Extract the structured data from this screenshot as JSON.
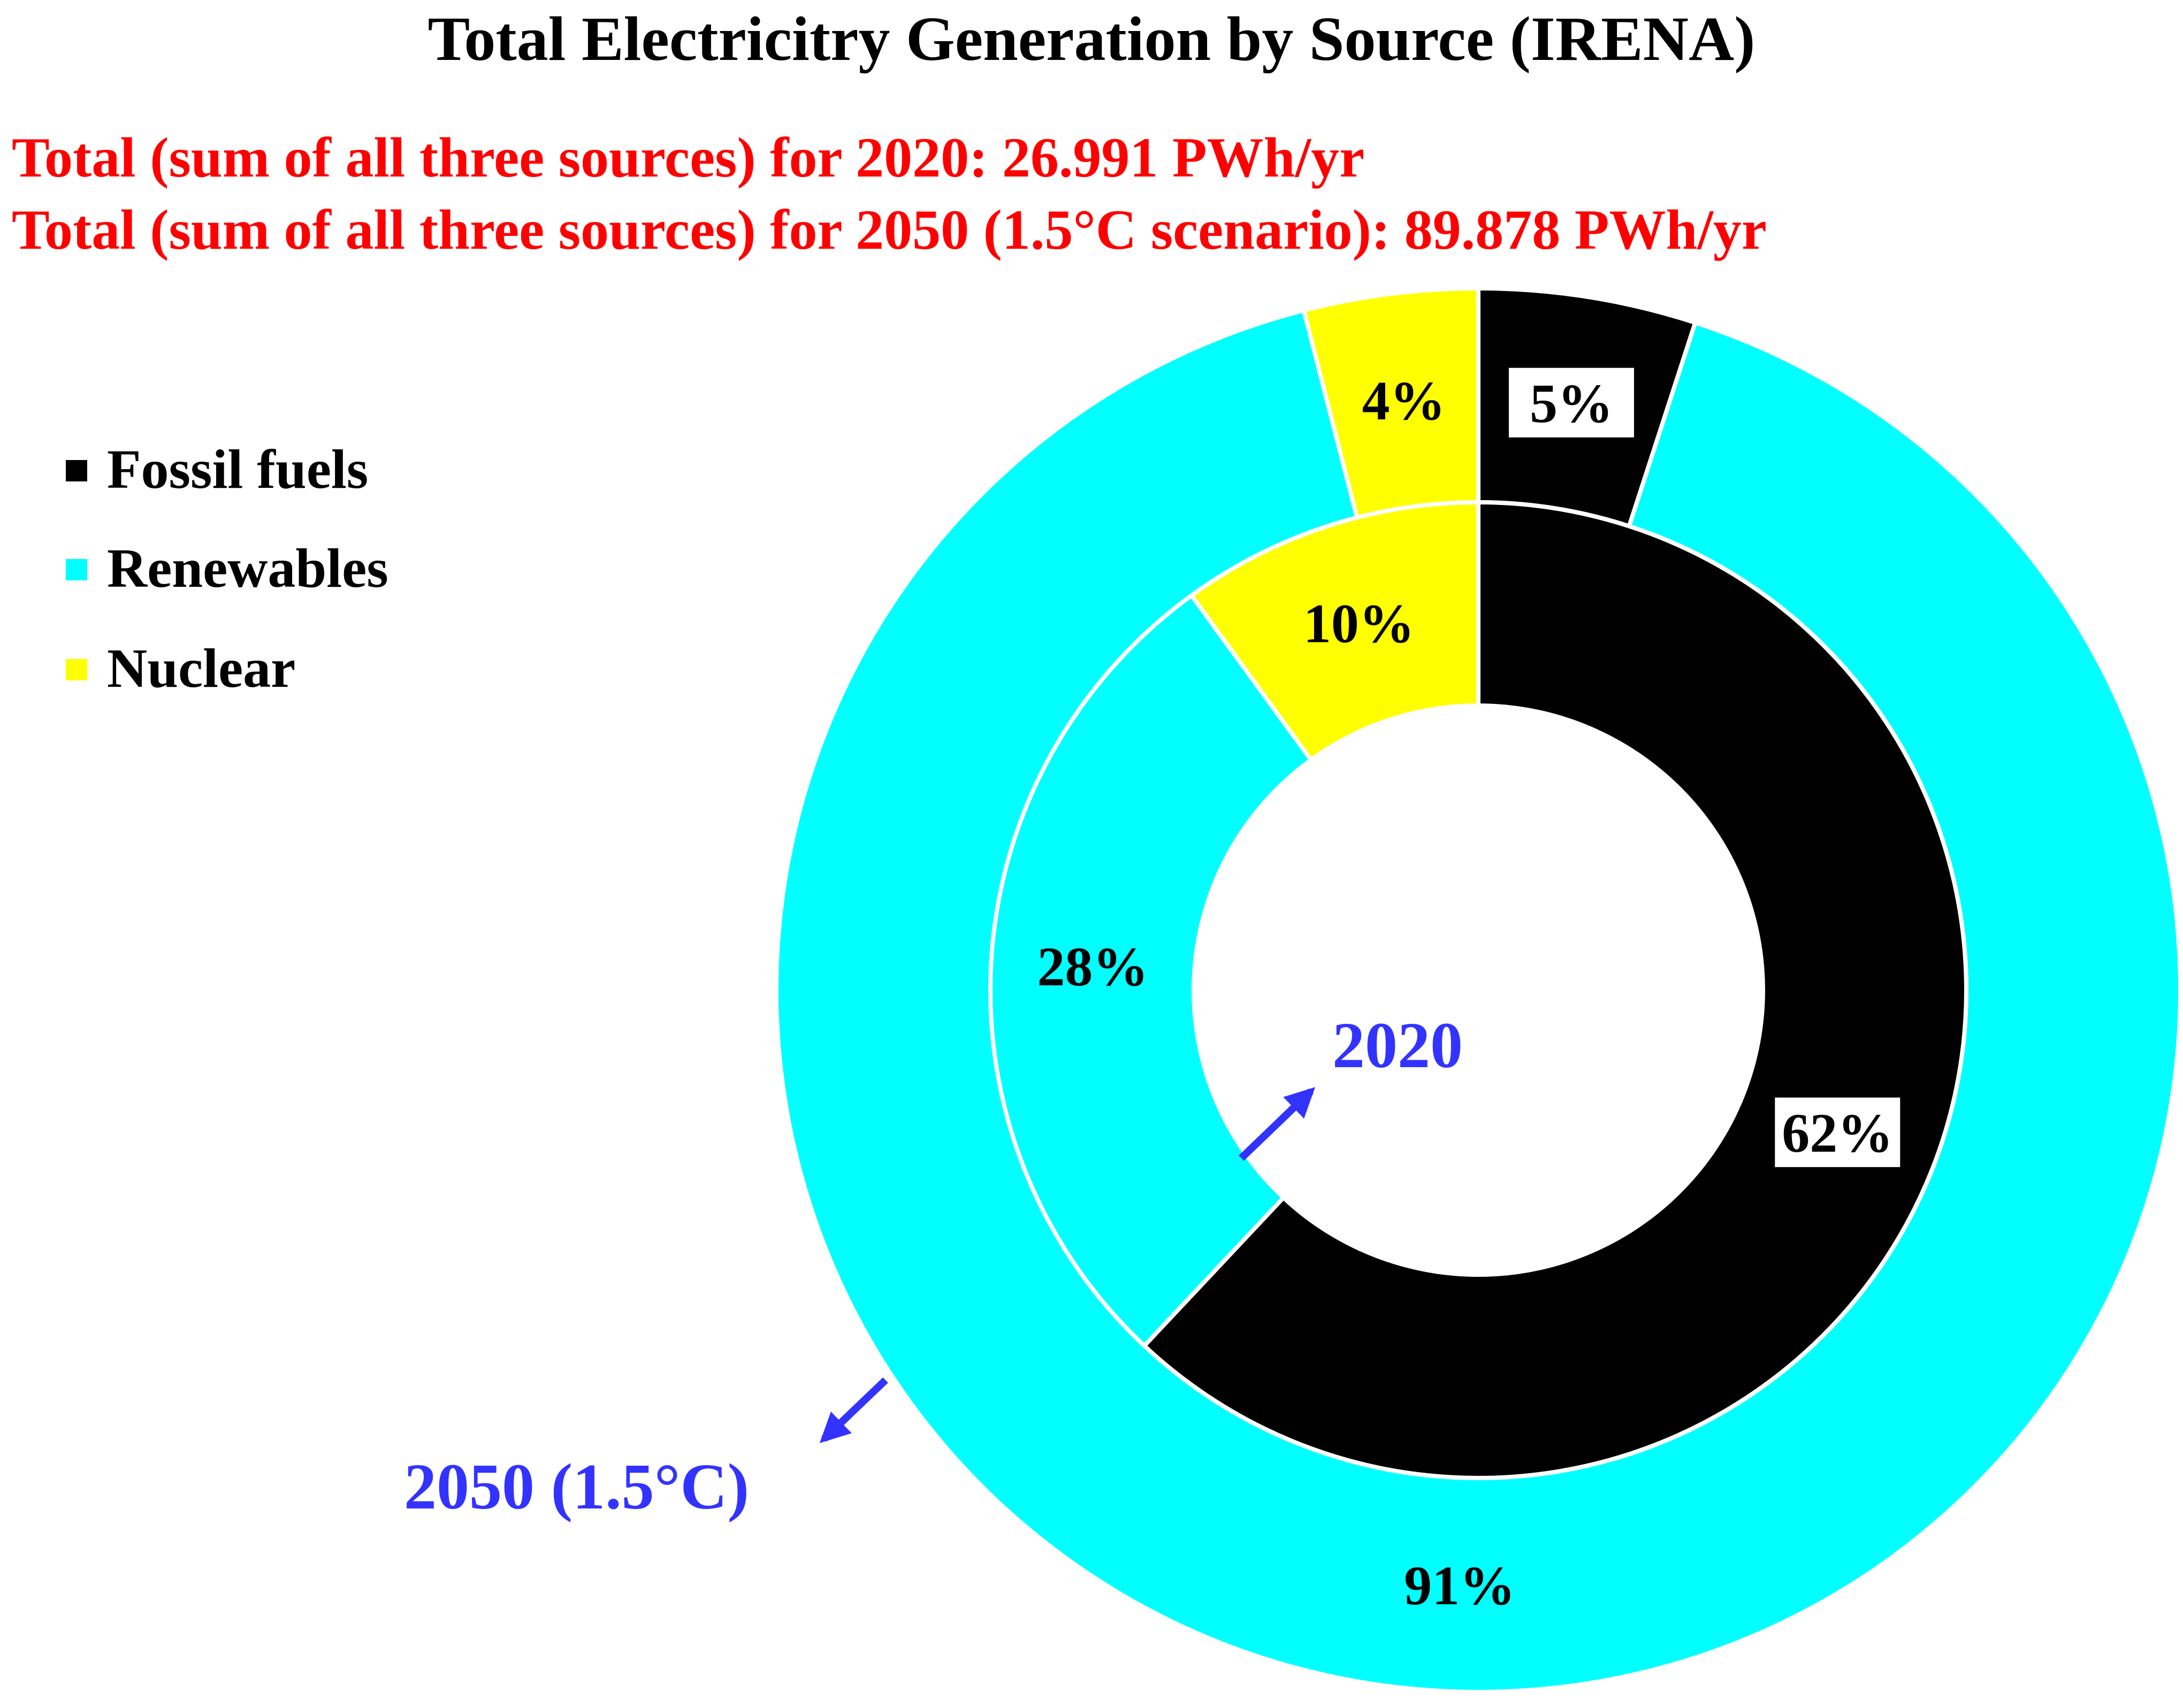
{
  "chart_data": {
    "type": "donut",
    "title": "Total Electricitry Generation by Source (IRENA)",
    "subtitles": [
      "Total (sum of all three sources) for 2020: 26.991 PWh/yr",
      "Total (sum of all three sources) for 2050 (1.5°C scenario): 89.878 PWh/yr"
    ],
    "categories": [
      "Fossil fuels",
      "Renewables",
      "Nuclear"
    ],
    "colors": {
      "Fossil fuels": "#000000",
      "Renewables": "#00FFFF",
      "Nuclear": "#FFFF00",
      "subtitle": "#FF0000",
      "annotation": "#3333FF"
    },
    "legend_position": "top-left",
    "series": [
      {
        "name": "2020",
        "ring": "inner",
        "values": [
          62,
          28,
          10
        ],
        "labels": [
          "62%",
          "28%",
          "10%"
        ]
      },
      {
        "name": "2050 (1.5°C)",
        "ring": "outer",
        "values": [
          5,
          91,
          4
        ],
        "labels": [
          "5%",
          "91%",
          "4%"
        ]
      }
    ],
    "annotations": {
      "inner": "2020",
      "outer": "2050 (1.5°C)"
    }
  }
}
